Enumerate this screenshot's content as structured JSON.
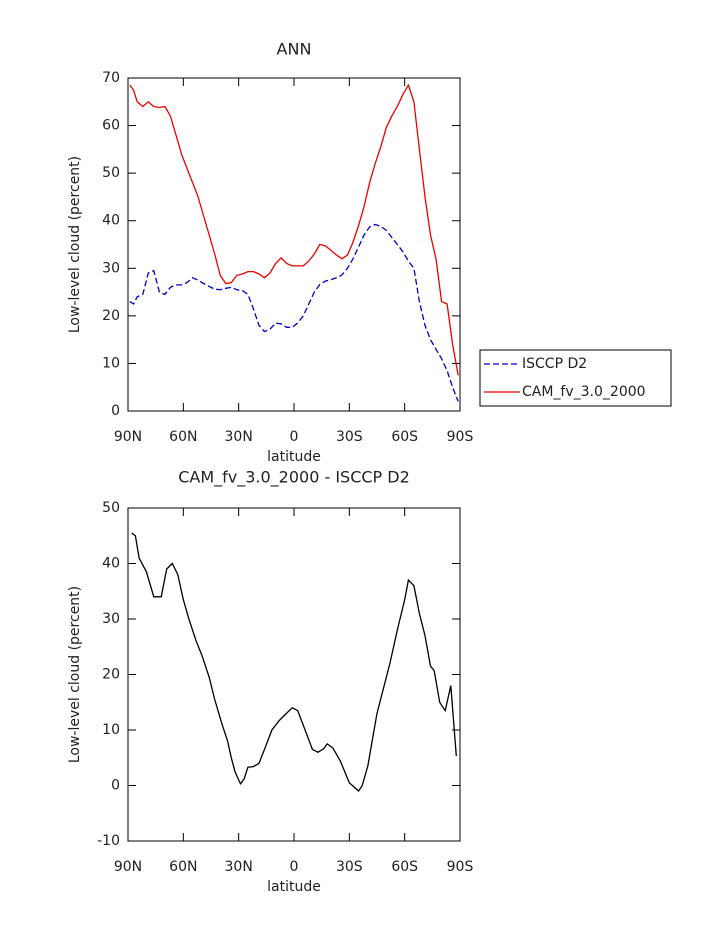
{
  "chart_data": [
    {
      "type": "line",
      "title": "ANN",
      "x_label": "latitude",
      "y_label": "Low-level cloud (percent)",
      "xlim": [
        90,
        -90
      ],
      "xticks": [
        {
          "value": 90,
          "label": "90N"
        },
        {
          "value": 60,
          "label": "60N"
        },
        {
          "value": 30,
          "label": "30N"
        },
        0,
        {
          "value": -30,
          "label": "30S"
        },
        {
          "value": -60,
          "label": "60S"
        },
        {
          "value": -90,
          "label": "90S"
        }
      ],
      "ylim": [
        0,
        70
      ],
      "yticks": [
        0,
        10,
        20,
        30,
        40,
        50,
        60,
        70
      ],
      "legend": "right",
      "x": [
        89,
        87,
        85,
        82,
        79,
        76,
        73,
        70,
        67,
        64,
        61,
        58,
        55,
        52,
        49,
        46,
        43,
        40,
        37,
        34,
        31,
        28,
        25,
        22,
        19,
        16,
        13,
        10,
        7,
        4,
        1,
        -2,
        -5,
        -8,
        -11,
        -14,
        -17,
        -20,
        -23,
        -26,
        -29,
        -32,
        -35,
        -38,
        -41,
        -44,
        -47,
        -50,
        -53,
        -56,
        -59,
        -62,
        -65,
        -68,
        -71,
        -74,
        -77,
        -80,
        -83,
        -86,
        -89
      ],
      "series": [
        {
          "name": "ISCCP D2",
          "color": "#0000cc",
          "dashed": true,
          "values": [
            23,
            22.5,
            24,
            24.5,
            29,
            29.5,
            25,
            24.5,
            26,
            26.5,
            26.5,
            27,
            28,
            27.5,
            26.8,
            26.2,
            25.6,
            25.5,
            25.8,
            26,
            25.5,
            25.3,
            24.5,
            21.5,
            18,
            16.7,
            17.2,
            18.5,
            18.3,
            17.6,
            17.6,
            18.5,
            20,
            22.5,
            25,
            26.6,
            27.3,
            27.6,
            28,
            28.6,
            30,
            32,
            34.5,
            37,
            38.7,
            39.2,
            38.8,
            38,
            36.5,
            35,
            33.5,
            31.5,
            30,
            23,
            18,
            15,
            13,
            11,
            8.5,
            5,
            2
          ]
        },
        {
          "name": "CAM_fv_3.0_2000",
          "color": "#ee0000",
          "dashed": false,
          "values": [
            68.5,
            67.5,
            65,
            64,
            65,
            64,
            63.8,
            64,
            62,
            58,
            54,
            51,
            48,
            45,
            41,
            37,
            33,
            28.5,
            26.8,
            27,
            28.5,
            28.8,
            29.3,
            29.3,
            28.8,
            28,
            29,
            31,
            32.2,
            31,
            30.5,
            30.5,
            30.5,
            31.5,
            33,
            35,
            34.7,
            33.8,
            32.8,
            32,
            32.8,
            35.5,
            39,
            43,
            48,
            52,
            55.5,
            59.5,
            62,
            64,
            66.5,
            68.5,
            65,
            55,
            45,
            37,
            32,
            23,
            22.5,
            14,
            7.5
          ]
        }
      ]
    },
    {
      "type": "line",
      "title": "CAM_fv_3.0_2000 - ISCCP D2",
      "x_label": "latitude",
      "y_label": "Low-level cloud (percent)",
      "xlim": [
        90,
        -90
      ],
      "xticks": [
        {
          "value": 90,
          "label": "90N"
        },
        {
          "value": 60,
          "label": "60N"
        },
        {
          "value": 30,
          "label": "30N"
        },
        0,
        {
          "value": -30,
          "label": "30S"
        },
        {
          "value": -60,
          "label": "60S"
        },
        {
          "value": -90,
          "label": "90S"
        }
      ],
      "ylim": [
        -10,
        50
      ],
      "yticks": [
        -10,
        0,
        10,
        20,
        30,
        40,
        50
      ],
      "x": [
        88,
        86,
        84,
        80,
        76,
        72,
        69,
        66,
        63,
        60,
        57,
        53,
        50,
        46,
        43,
        39,
        36,
        34,
        32,
        30,
        29,
        27,
        25,
        22,
        19,
        16,
        12,
        8,
        5,
        1,
        -2,
        -6,
        -10,
        -13,
        -16,
        -18,
        -21,
        -25,
        -30,
        -35,
        -37,
        -40,
        -45,
        -52,
        -56,
        -60,
        -62,
        -65,
        -68,
        -71,
        -74,
        -76,
        -79,
        -82,
        -85,
        -88
      ],
      "series": [
        {
          "color": "#000000",
          "dashed": false,
          "values": [
            45.5,
            45,
            41,
            38.5,
            34,
            34,
            39,
            40,
            38,
            33.5,
            30,
            26,
            23.5,
            19.5,
            15.5,
            11,
            8,
            5,
            2.5,
            1,
            0.3,
            1.2,
            3.3,
            3.4,
            4,
            6.5,
            10,
            11.7,
            12.7,
            14,
            13.5,
            10,
            6.5,
            6,
            6.6,
            7.5,
            6.8,
            4.5,
            0.5,
            -1,
            0,
            3.5,
            13,
            22,
            28,
            33.5,
            37,
            36,
            31,
            27,
            21.5,
            20.7,
            15,
            13.5,
            18,
            5.3
          ]
        }
      ]
    }
  ]
}
